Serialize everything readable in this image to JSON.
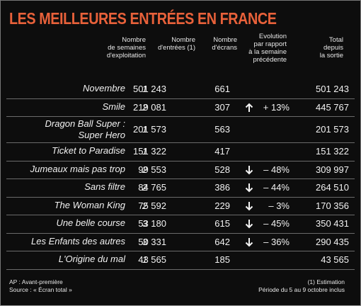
{
  "title": "LES MEILLEURES ENTRÉES EN FRANCE",
  "columns": {
    "weeks": "Nombre\nde semaines\nd'exploitation",
    "entries": "Nombre\nd'entrées (1)",
    "screens": "Nombre\nd'écrans",
    "evolution": "Evolution\npar rapport\nà la semaine\nprécédente",
    "total": "Total\ndepuis\nla sortie"
  },
  "rows": [
    {
      "film": "Novembre",
      "weeks": "1",
      "entries": "501 243",
      "screens": "661",
      "direction": "",
      "evolution": "",
      "total": "501 243"
    },
    {
      "film": "Smile",
      "weeks": "2",
      "entries": "219 081",
      "screens": "307",
      "direction": "up",
      "evolution": "+ 13%",
      "total": "445 767"
    },
    {
      "film": "Dragon Ball Super :\nSuper Hero",
      "weeks": "1",
      "entries": "201 573",
      "screens": "563",
      "direction": "",
      "evolution": "",
      "total": "201 573"
    },
    {
      "film": "Ticket to Paradise",
      "weeks": "1",
      "entries": "151 322",
      "screens": "417",
      "direction": "",
      "evolution": "",
      "total": "151 322"
    },
    {
      "film": "Jumeaux mais pas trop",
      "weeks": "2",
      "entries": "99 553",
      "screens": "528",
      "direction": "down",
      "evolution": "– 48%",
      "total": "309 997"
    },
    {
      "film": "Sans filtre",
      "weeks": "2",
      "entries": "84 765",
      "screens": "386",
      "direction": "down",
      "evolution": "– 44%",
      "total": "264 510"
    },
    {
      "film": "The Woman King",
      "weeks": "2",
      "entries": "75 592",
      "screens": "229",
      "direction": "down",
      "evolution": "– 3%",
      "total": "170 356"
    },
    {
      "film": "Une belle course",
      "weeks": "3",
      "entries": "53 180",
      "screens": "615",
      "direction": "down",
      "evolution": "– 45%",
      "total": "350 431"
    },
    {
      "film": "Les Enfants des autres",
      "weeks": "3",
      "entries": "50 331",
      "screens": "642",
      "direction": "down",
      "evolution": "– 36%",
      "total": "290 435"
    },
    {
      "film": "L'Origine du mal",
      "weeks": "1",
      "entries": "43 565",
      "screens": "185",
      "direction": "",
      "evolution": "",
      "total": "43 565"
    }
  ],
  "footer": {
    "ap": "AP : Avant-première",
    "source": "Source : « Écran total »",
    "estimation": "(1) Estimation",
    "period": "Période du 5 au 9 octobre inclus"
  },
  "colors": {
    "title": "#e8613a",
    "background": "#0d0d0d",
    "text": "#f2f2f2",
    "rule": "#6a6a6a"
  }
}
